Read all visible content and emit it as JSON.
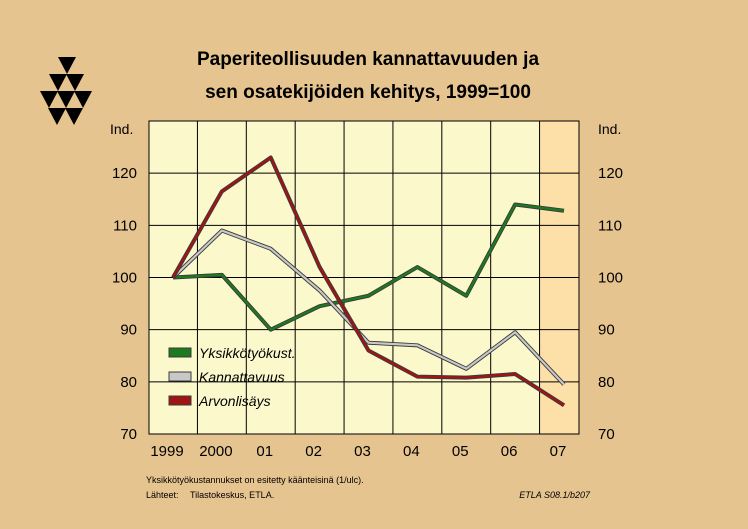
{
  "chart_data": {
    "type": "line",
    "title": "Paperiteollisuuden kannattavuuden ja\nsen osatekijöiden kehitys, 1999=100",
    "title_lines": [
      "Paperiteollisuuden kannattavuuden ja",
      "sen osatekijöiden kehitys, 1999=100"
    ],
    "ylabel_left": "Ind.",
    "ylabel_right": "Ind.",
    "ylim": [
      70,
      130
    ],
    "yticks": [
      70,
      80,
      90,
      100,
      110,
      120
    ],
    "categories": [
      "1999",
      "2000",
      "01",
      "02",
      "03",
      "04",
      "05",
      "06",
      "07"
    ],
    "forecast_start_index": 8,
    "grid": true,
    "legend_position": "lower-left",
    "series": [
      {
        "name": "Yksikkötyökust.",
        "color": "#1e7a1e",
        "values": [
          100,
          100.5,
          90,
          94.5,
          96.5,
          102,
          96.5,
          114,
          112.8
        ]
      },
      {
        "name": "Kannattavuus",
        "color": "#c8c8c8",
        "values": [
          100,
          109,
          105.5,
          97.5,
          87.5,
          87,
          82.5,
          89.5,
          79.5
        ]
      },
      {
        "name": "Arvonlisäys",
        "color": "#a01414",
        "values": [
          100,
          116.5,
          123,
          102,
          86,
          81,
          80.8,
          81.5,
          75.5
        ]
      }
    ],
    "annotations": {
      "note": "Yksikkötyökustannukset on esitetty käänteisinä (1/ulc).",
      "source_label": "Lähteet:",
      "source": "Tilastokeskus, ETLA.",
      "code": "ETLA S08.1/b207"
    }
  },
  "colors": {
    "background": "#e6c48f",
    "plot_area": "#fbf8cc",
    "forecast_area": "#fde0a8",
    "grid": "#000000"
  },
  "logo_icon": "etla-triangles-logo"
}
